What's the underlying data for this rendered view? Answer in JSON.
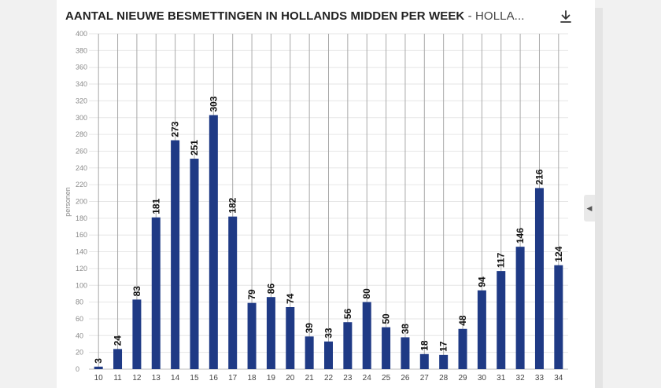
{
  "header": {
    "title_main": "AANTAL NIEUWE BESMETTINGEN IN HOLLANDS MIDDEN PER WEEK",
    "title_sub": " - HOLLA...",
    "download_icon": "download-icon",
    "collapse_icon": "chevron-left-icon"
  },
  "chart_data": {
    "type": "bar",
    "title": "AANTAL NIEUWE BESMETTINGEN IN HOLLANDS MIDDEN PER WEEK - HOLLA...",
    "ylabel": "personen",
    "xlabel": "",
    "ylim": [
      0,
      400
    ],
    "yticks": [
      0,
      20,
      40,
      60,
      80,
      100,
      120,
      140,
      160,
      180,
      200,
      220,
      240,
      260,
      280,
      300,
      320,
      340,
      360,
      380,
      400
    ],
    "categories": [
      "10",
      "11",
      "12",
      "13",
      "14",
      "15",
      "16",
      "17",
      "18",
      "19",
      "20",
      "21",
      "22",
      "23",
      "24",
      "25",
      "26",
      "27",
      "28",
      "29",
      "30",
      "31",
      "32",
      "33",
      "34"
    ],
    "values": [
      3,
      24,
      83,
      181,
      273,
      251,
      303,
      182,
      79,
      86,
      74,
      39,
      33,
      56,
      80,
      50,
      38,
      18,
      17,
      48,
      94,
      117,
      146,
      216,
      124
    ],
    "bar_color": "#1f3a85",
    "grid": true,
    "data_labels": true
  }
}
